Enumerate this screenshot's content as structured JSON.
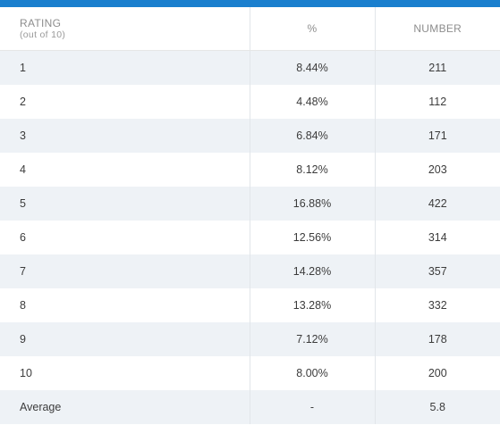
{
  "colors": {
    "accent": "#1a7fce",
    "row_alt": "#eef2f6"
  },
  "table": {
    "headers": {
      "rating": "RATING",
      "rating_sub": "(out of 10)",
      "percent": "%",
      "number": "NUMBER"
    },
    "rows": [
      {
        "rating": "1",
        "percent": "8.44%",
        "number": "211"
      },
      {
        "rating": "2",
        "percent": "4.48%",
        "number": "112"
      },
      {
        "rating": "3",
        "percent": "6.84%",
        "number": "171"
      },
      {
        "rating": "4",
        "percent": "8.12%",
        "number": "203"
      },
      {
        "rating": "5",
        "percent": "16.88%",
        "number": "422"
      },
      {
        "rating": "6",
        "percent": "12.56%",
        "number": "314"
      },
      {
        "rating": "7",
        "percent": "14.28%",
        "number": "357"
      },
      {
        "rating": "8",
        "percent": "13.28%",
        "number": "332"
      },
      {
        "rating": "9",
        "percent": "7.12%",
        "number": "178"
      },
      {
        "rating": "10",
        "percent": "8.00%",
        "number": "200"
      },
      {
        "rating": "Average",
        "percent": "-",
        "number": "5.8"
      }
    ]
  }
}
